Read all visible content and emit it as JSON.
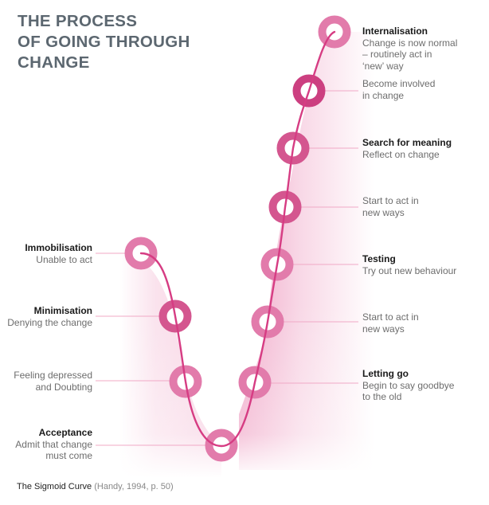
{
  "title_lines": [
    "THE PROCESS",
    "OF GOING THROUGH",
    "CHANGE"
  ],
  "stages": {
    "immobilisation": {
      "heading": "Immobilisation",
      "desc": "Unable to act"
    },
    "minimisation": {
      "heading": "Minimisation",
      "desc": "Denying the change"
    },
    "depressed": {
      "heading": "",
      "desc": "Feeling depressed\nand Doubting"
    },
    "acceptance": {
      "heading": "Acceptance",
      "desc": "Admit that change\nmust come"
    },
    "letting_go": {
      "heading": "Letting go",
      "desc": "Begin to say goodbye\nto the old"
    },
    "start_to_act_1": {
      "heading": "",
      "desc": "Start to act in\nnew ways"
    },
    "testing": {
      "heading": "Testing",
      "desc": "Try out new behaviour"
    },
    "start_to_act_2": {
      "heading": "",
      "desc": "Start to act in\nnew ways"
    },
    "search_for_meaning": {
      "heading": "Search for meaning",
      "desc": "Reflect on change"
    },
    "become_involved": {
      "heading": "",
      "desc": "Become involved\nin change"
    },
    "internalisation": {
      "heading": "Internalisation",
      "desc": "Change is now normal\n–  routinely act in\n‘new’ way"
    }
  },
  "caption": {
    "main": "The Sigmoid Curve",
    "cite": "(Handy, 1994, p. 50)"
  },
  "colors": {
    "curve": "#d63c83",
    "ring": "#e27bab",
    "ring_dark": "#cc3f80",
    "leader": "#f0a9c6",
    "shade": "#e4629c",
    "title": "#5c6770"
  }
}
